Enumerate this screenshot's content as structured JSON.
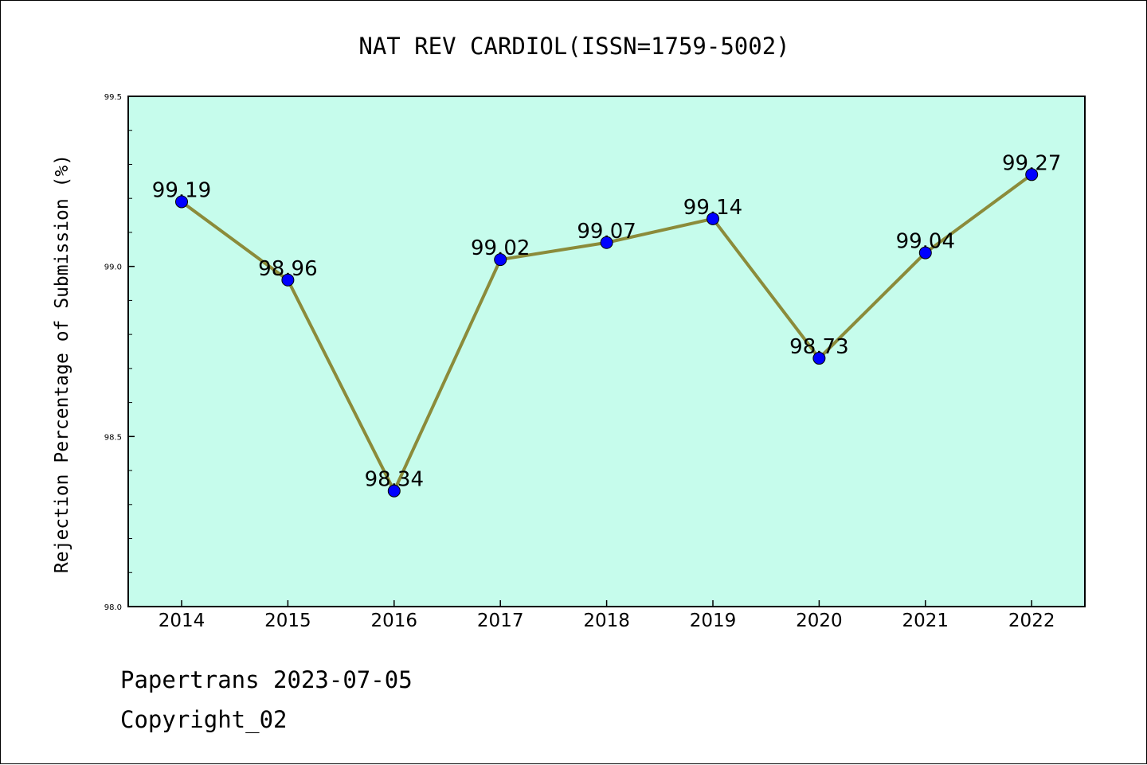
{
  "chart_data": {
    "type": "line",
    "title": "NAT REV CARDIOL(ISSN=1759-5002)",
    "xlabel": "",
    "ylabel": "Rejection Percentage of Submission (%)",
    "categories": [
      "2014",
      "2015",
      "2016",
      "2017",
      "2018",
      "2019",
      "2020",
      "2021",
      "2022"
    ],
    "values": [
      99.19,
      98.96,
      98.34,
      99.02,
      99.07,
      99.14,
      98.73,
      99.04,
      99.27
    ],
    "data_labels": [
      "99.19",
      "98.96",
      "98.34",
      "99.02",
      "99.07",
      "99.14",
      "98.73",
      "99.04",
      "99.27"
    ],
    "ylim": [
      98.0,
      99.5
    ],
    "y_major_ticks": [
      "98.0",
      "98.5",
      "99.0",
      "99.5"
    ],
    "y_minor_tick_step": 0.1,
    "grid": false,
    "legend": "none",
    "colors": {
      "plot_background": "#c6fcec",
      "line": "#8b8b3a",
      "marker_fill": "#0000ff",
      "marker_edge": "#000000",
      "axes": "#000000"
    }
  },
  "footer": {
    "line1": "Papertrans 2023-07-05",
    "line2": "Copyright_02"
  }
}
